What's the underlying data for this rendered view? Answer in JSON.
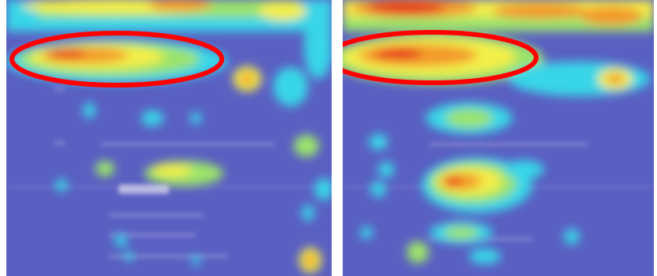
{
  "image": {
    "description_type": "side-by-side attention heatmaps over blurred screenshots",
    "colors": {
      "background_blue": "#5a5fc2",
      "cyan": "#38d6e8",
      "green": "#9be36a",
      "yellow": "#f3ee4a",
      "orange": "#f39a2a",
      "red": "#e8331e",
      "annotation_red": "#ff0000"
    }
  },
  "panels": [
    {
      "id": "left",
      "annotation": "red-ellipse"
    },
    {
      "id": "right",
      "annotation": "red-ellipse"
    }
  ]
}
